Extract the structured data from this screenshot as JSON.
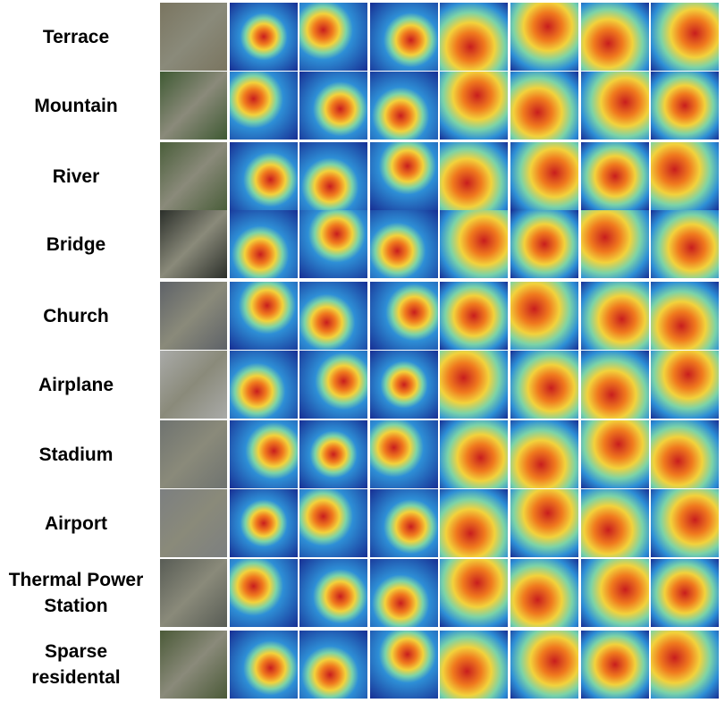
{
  "figure": {
    "rows": [
      {
        "label": "Terrace"
      },
      {
        "label": "Mountain"
      },
      {
        "label": "River"
      },
      {
        "label": "Bridge"
      },
      {
        "label": "Church"
      },
      {
        "label": "Airplane"
      },
      {
        "label": "Stadium"
      },
      {
        "label": "Airport"
      },
      {
        "label": "Thermal Power\nStation"
      },
      {
        "label": "Sparse\nresidental"
      }
    ],
    "heatmap_columns": 7,
    "colors": {
      "hot": "#c81e1e",
      "warm": "#f07a1e",
      "yellow": "#f2d23c",
      "cyan": "#7bd3a8",
      "blue": "#2e8fd6",
      "cold": "#172e93"
    }
  }
}
